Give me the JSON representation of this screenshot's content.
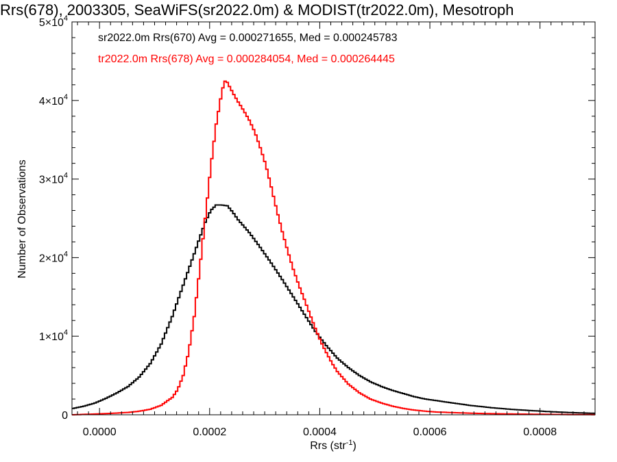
{
  "chart_data": {
    "type": "line",
    "title": "Rrs(678), 2003305, SeaWiFS(sr2022.0m) & MODIST(tr2022.0m), Mesotroph",
    "xlabel": "Rrs (str",
    "xlabel_sup": "-1",
    "xlabel_end": ")",
    "ylabel": "Number of Observations",
    "xlim": [
      -5e-05,
      0.0009
    ],
    "ylim": [
      0,
      50000
    ],
    "grid": false,
    "x_ticks": [
      {
        "value": 0.0,
        "label": "0.0000"
      },
      {
        "value": 0.0002,
        "label": "0.0002"
      },
      {
        "value": 0.0004,
        "label": "0.0004"
      },
      {
        "value": 0.0006,
        "label": "0.0006"
      },
      {
        "value": 0.0008,
        "label": "0.0008"
      }
    ],
    "y_ticks": [
      {
        "value": 0,
        "mantissa": "0",
        "exp": ""
      },
      {
        "value": 10000,
        "mantissa": "1×10",
        "exp": "4"
      },
      {
        "value": 20000,
        "mantissa": "2×10",
        "exp": "4"
      },
      {
        "value": 30000,
        "mantissa": "3×10",
        "exp": "4"
      },
      {
        "value": 40000,
        "mantissa": "4×10",
        "exp": "4"
      },
      {
        "value": 50000,
        "mantissa": "5×10",
        "exp": "4"
      }
    ],
    "series": [
      {
        "name": "sr2022.0m Rrs(670) Avg = 0.000271655, Med = 0.000245783",
        "color": "#000000",
        "points": [
          [
            -5e-05,
            800
          ],
          [
            -3e-05,
            1100
          ],
          [
            -1e-05,
            1500
          ],
          [
            1e-05,
            2100
          ],
          [
            3e-05,
            2800
          ],
          [
            5e-05,
            3600
          ],
          [
            7e-05,
            4800
          ],
          [
            9e-05,
            6500
          ],
          [
            0.00011,
            9000
          ],
          [
            0.00013,
            12500
          ],
          [
            0.00015,
            16500
          ],
          [
            0.00017,
            20500
          ],
          [
            0.00019,
            24500
          ],
          [
            0.0002,
            26000
          ],
          [
            0.00021,
            26700
          ],
          [
            0.00022,
            26700
          ],
          [
            0.00023,
            26600
          ],
          [
            0.00024,
            25800
          ],
          [
            0.00025,
            24800
          ],
          [
            0.00027,
            23200
          ],
          [
            0.00029,
            21300
          ],
          [
            0.00031,
            19300
          ],
          [
            0.00033,
            17200
          ],
          [
            0.00035,
            15000
          ],
          [
            0.00037,
            12800
          ],
          [
            0.00039,
            10600
          ],
          [
            0.00041,
            8800
          ],
          [
            0.00043,
            7200
          ],
          [
            0.00045,
            6000
          ],
          [
            0.00047,
            5000
          ],
          [
            0.00049,
            4200
          ],
          [
            0.00051,
            3600
          ],
          [
            0.00053,
            3100
          ],
          [
            0.00055,
            2700
          ],
          [
            0.00057,
            2300
          ],
          [
            0.00059,
            2000
          ],
          [
            0.00061,
            1800
          ],
          [
            0.00063,
            1600
          ],
          [
            0.00065,
            1400
          ],
          [
            0.00067,
            1200
          ],
          [
            0.00069,
            1050
          ],
          [
            0.00071,
            900
          ],
          [
            0.00073,
            780
          ],
          [
            0.00075,
            670
          ],
          [
            0.00077,
            580
          ],
          [
            0.00079,
            500
          ],
          [
            0.00081,
            420
          ],
          [
            0.00083,
            350
          ],
          [
            0.00085,
            290
          ],
          [
            0.00087,
            240
          ],
          [
            0.0009,
            180
          ]
        ]
      },
      {
        "name": "tr2022.0m Rrs(678) Avg = 0.000284054, Med = 0.000264445",
        "color": "#ff0000",
        "points": [
          [
            -5e-05,
            0
          ],
          [
            -3e-05,
            50
          ],
          [
            -1e-05,
            100
          ],
          [
            1e-05,
            150
          ],
          [
            3e-05,
            220
          ],
          [
            5e-05,
            300
          ],
          [
            7e-05,
            450
          ],
          [
            9e-05,
            700
          ],
          [
            0.00011,
            1200
          ],
          [
            0.00013,
            2200
          ],
          [
            0.00014,
            3200
          ],
          [
            0.00015,
            5000
          ],
          [
            0.00016,
            8000
          ],
          [
            0.00017,
            12500
          ],
          [
            0.00018,
            18500
          ],
          [
            0.00019,
            25000
          ],
          [
            0.0002,
            31500
          ],
          [
            0.00021,
            37000
          ],
          [
            0.00022,
            41000
          ],
          [
            0.000225,
            42500
          ],
          [
            0.00023,
            42300
          ],
          [
            0.00024,
            41000
          ],
          [
            0.00025,
            39800
          ],
          [
            0.00026,
            38700
          ],
          [
            0.00027,
            37500
          ],
          [
            0.00028,
            36000
          ],
          [
            0.00029,
            34000
          ],
          [
            0.0003,
            31800
          ],
          [
            0.00031,
            29000
          ],
          [
            0.00032,
            26000
          ],
          [
            0.00033,
            23300
          ],
          [
            0.00034,
            20800
          ],
          [
            0.00035,
            18500
          ],
          [
            0.00036,
            16500
          ],
          [
            0.00037,
            14700
          ],
          [
            0.00038,
            12800
          ],
          [
            0.00039,
            11000
          ],
          [
            0.0004,
            9300
          ],
          [
            0.00041,
            7900
          ],
          [
            0.00042,
            6600
          ],
          [
            0.00043,
            5500
          ],
          [
            0.00045,
            3900
          ],
          [
            0.00047,
            2800
          ],
          [
            0.00049,
            2000
          ],
          [
            0.00051,
            1500
          ],
          [
            0.00053,
            1100
          ],
          [
            0.00055,
            800
          ],
          [
            0.00057,
            600
          ],
          [
            0.00059,
            450
          ],
          [
            0.00061,
            350
          ],
          [
            0.00065,
            250
          ],
          [
            0.0007,
            150
          ],
          [
            0.00075,
            100
          ],
          [
            0.0008,
            60
          ],
          [
            0.00085,
            30
          ],
          [
            0.0009,
            10
          ]
        ]
      }
    ],
    "legend": [
      {
        "text": "sr2022.0m Rrs(670) Avg = 0.000271655, Med = 0.000245783",
        "color": "#000000"
      },
      {
        "text": "tr2022.0m Rrs(678) Avg = 0.000284054, Med = 0.000264445",
        "color": "#ff0000"
      }
    ],
    "legend_placement": "top-left inside plot"
  }
}
